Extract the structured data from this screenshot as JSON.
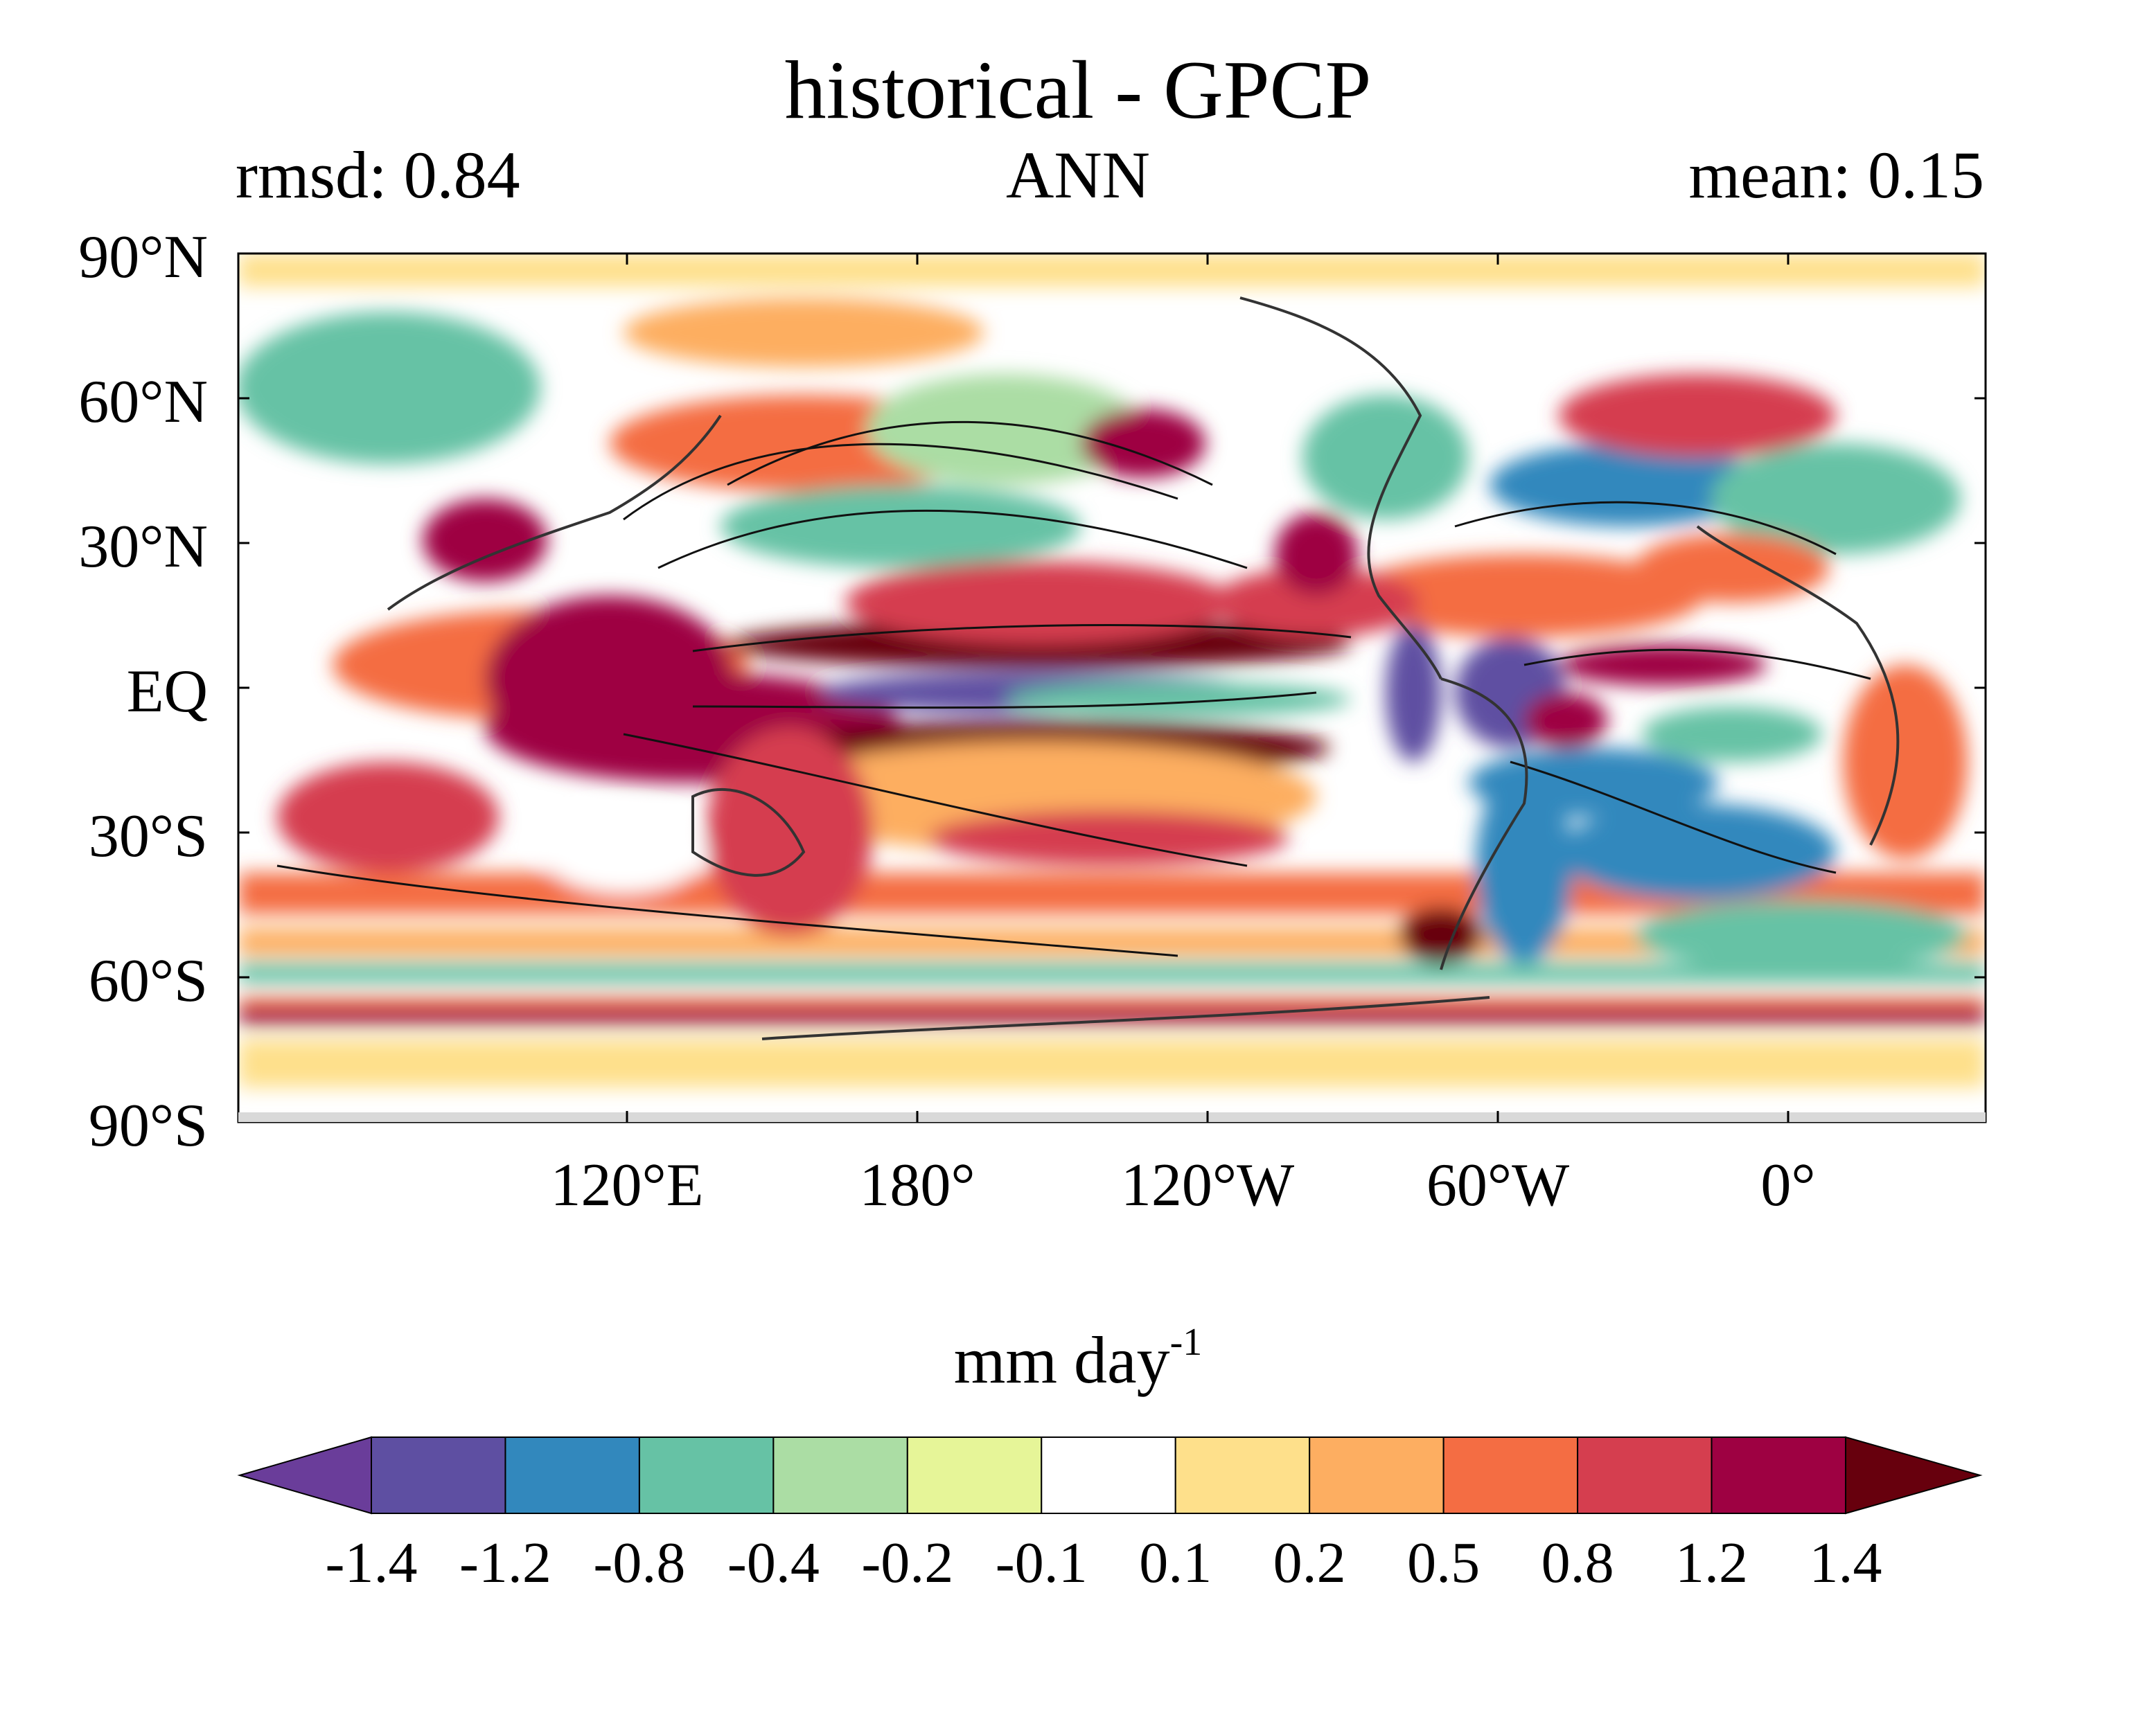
{
  "title": "historical - GPCP",
  "stats": {
    "rmsd": "rmsd: 0.84",
    "season": "ANN",
    "mean": "mean: 0.15"
  },
  "axes": {
    "lat_labels": [
      "90°N",
      "60°N",
      "30°N",
      "EQ",
      "30°S",
      "60°S",
      "90°S"
    ],
    "lon_labels": [
      "120°E",
      "180°",
      "120°W",
      "60°W",
      "0°"
    ]
  },
  "colorbar": {
    "units_base": "mm day",
    "units_exp": "-1",
    "levels": [
      "-1.4",
      "-1.2",
      "-0.8",
      "-0.4",
      "-0.2",
      "-0.1",
      "0.1",
      "0.2",
      "0.5",
      "0.8",
      "1.2",
      "1.4"
    ],
    "colors": [
      "#5e4fa2",
      "#3288bd",
      "#66c2a5",
      "#abdda4",
      "#e6f598",
      "#ffffff",
      "#fee08b",
      "#fdae61",
      "#f46d43",
      "#d53e4f",
      "#9e0142"
    ],
    "under_color": "#6a3d9a",
    "over_color": "#67000d"
  }
}
